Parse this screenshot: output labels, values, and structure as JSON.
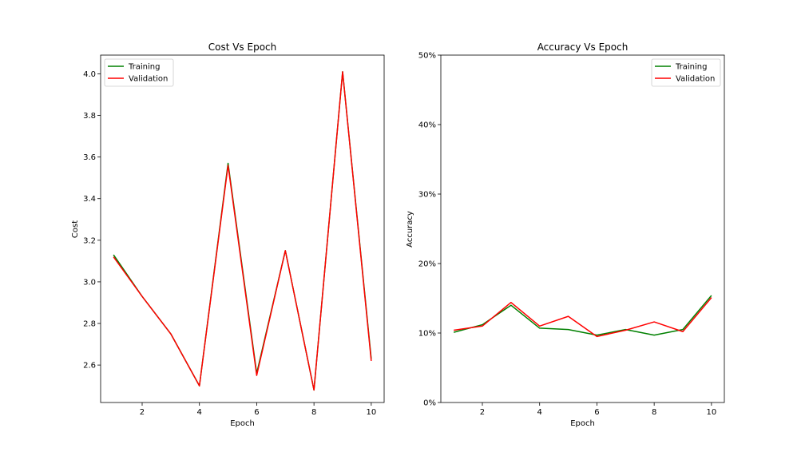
{
  "chart_data": [
    {
      "type": "line",
      "title": "Cost Vs Epoch",
      "xlabel": "Epoch",
      "ylabel": "Cost",
      "xlim": [
        0.55,
        10.45
      ],
      "ylim": [
        2.42,
        4.09
      ],
      "xticks": [
        2,
        4,
        6,
        8,
        10
      ],
      "xtick_labels": [
        "2",
        "4",
        "6",
        "8",
        "10"
      ],
      "yticks": [
        2.6,
        2.8,
        3.0,
        3.2,
        3.4,
        3.6,
        3.8,
        4.0
      ],
      "ytick_labels": [
        "2.6",
        "2.8",
        "3.0",
        "3.2",
        "3.4",
        "3.6",
        "3.8",
        "4.0"
      ],
      "legend": "top-left",
      "grid": false,
      "x": [
        1,
        2,
        3,
        4,
        5,
        6,
        7,
        8,
        9,
        10
      ],
      "series": [
        {
          "name": "Training",
          "color": "#008000",
          "values": [
            3.13,
            2.93,
            2.75,
            2.5,
            3.57,
            2.56,
            3.15,
            2.48,
            4.01,
            2.63
          ]
        },
        {
          "name": "Validation",
          "color": "#ff0000",
          "values": [
            3.12,
            2.93,
            2.75,
            2.5,
            3.56,
            2.55,
            3.15,
            2.48,
            4.01,
            2.62
          ]
        }
      ]
    },
    {
      "type": "line",
      "title": "Accuracy Vs Epoch",
      "xlabel": "Epoch",
      "ylabel": "Accuracy",
      "xlim": [
        0.55,
        10.45
      ],
      "ylim": [
        0,
        50
      ],
      "xticks": [
        2,
        4,
        6,
        8,
        10
      ],
      "xtick_labels": [
        "2",
        "4",
        "6",
        "8",
        "10"
      ],
      "yticks": [
        0,
        10,
        20,
        30,
        40,
        50
      ],
      "ytick_labels": [
        "0%",
        "10%",
        "20%",
        "30%",
        "40%",
        "50%"
      ],
      "legend": "top-right",
      "grid": false,
      "x": [
        1,
        2,
        3,
        4,
        5,
        6,
        7,
        8,
        9,
        10
      ],
      "series": [
        {
          "name": "Training",
          "color": "#008000",
          "values": [
            10.1,
            11.2,
            14.0,
            10.7,
            10.5,
            9.7,
            10.5,
            9.7,
            10.5,
            15.4
          ]
        },
        {
          "name": "Validation",
          "color": "#ff0000",
          "values": [
            10.4,
            11.0,
            14.4,
            11.0,
            12.4,
            9.5,
            10.4,
            11.6,
            10.2,
            15.1
          ]
        }
      ]
    }
  ]
}
